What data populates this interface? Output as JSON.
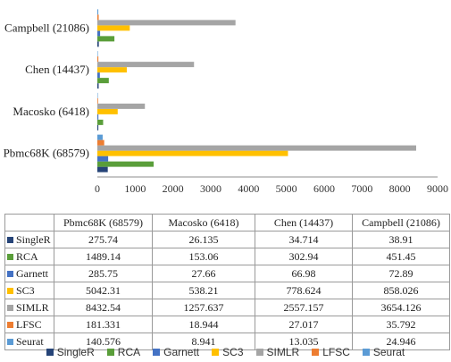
{
  "chart_data": {
    "type": "bar",
    "orientation": "horizontal",
    "categories": [
      "Pbmc68K (68579)",
      "Macosko (6418)",
      "Chen (14437)",
      "Campbell (21086)"
    ],
    "series": [
      {
        "name": "SingleR",
        "color": "#264478",
        "values": [
          275.74,
          26.135,
          34.714,
          38.91
        ],
        "labels": [
          "275.74",
          "26.135",
          "34.714",
          "38.91"
        ]
      },
      {
        "name": "RCA",
        "color": "#5a9e3a",
        "values": [
          1489.14,
          153.06,
          302.94,
          451.45
        ],
        "labels": [
          "1489.14",
          "153.06",
          "302.94",
          "451.45"
        ]
      },
      {
        "name": "Garnett",
        "color": "#4472c4",
        "values": [
          285.75,
          27.66,
          66.98,
          72.89
        ],
        "labels": [
          "285.75",
          "27.66",
          "66.98",
          "72.89"
        ]
      },
      {
        "name": "SC3",
        "color": "#ffc000",
        "values": [
          5042.31,
          538.21,
          778.624,
          858.026
        ],
        "labels": [
          "5042.31",
          "538.21",
          "778.624",
          "858.026"
        ]
      },
      {
        "name": "SIMLR",
        "color": "#a5a5a5",
        "values": [
          8432.54,
          1257.637,
          2557.157,
          3654.126
        ],
        "labels": [
          "8432.54",
          "1257.637",
          "2557.157",
          "3654.126"
        ]
      },
      {
        "name": "LFSC",
        "color": "#ed7d31",
        "values": [
          181.331,
          18.944,
          27.017,
          35.792
        ],
        "labels": [
          "181.331",
          "18.944",
          "27.017",
          "35.792"
        ]
      },
      {
        "name": "Seurat",
        "color": "#5b9bd5",
        "values": [
          140.576,
          8.941,
          13.035,
          24.946
        ],
        "labels": [
          "140.576",
          "8.941",
          "13.035",
          "24.946"
        ]
      }
    ],
    "xlim": [
      0,
      9000
    ],
    "xticks": [
      "0",
      "1000",
      "2000",
      "3000",
      "4000",
      "5000",
      "6000",
      "7000",
      "8000",
      "9000"
    ],
    "grid": false,
    "legend_position": "bottom",
    "data_table": true
  }
}
